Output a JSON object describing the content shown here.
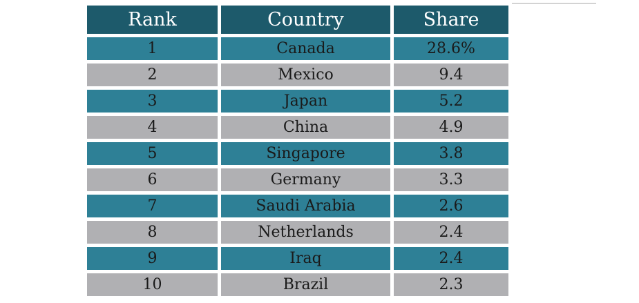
{
  "chart_data": {
    "type": "table",
    "columns": [
      "Rank",
      "Country",
      "Share"
    ],
    "rows": [
      {
        "rank": "1",
        "country": "Canada",
        "share": "28.6%"
      },
      {
        "rank": "2",
        "country": "Mexico",
        "share": "9.4"
      },
      {
        "rank": "3",
        "country": "Japan",
        "share": "5.2"
      },
      {
        "rank": "4",
        "country": "China",
        "share": "4.9"
      },
      {
        "rank": "5",
        "country": "Singapore",
        "share": "3.8"
      },
      {
        "rank": "6",
        "country": "Germany",
        "share": "3.3"
      },
      {
        "rank": "7",
        "country": "Saudi Arabia",
        "share": "2.6"
      },
      {
        "rank": "8",
        "country": "Netherlands",
        "share": "2.4"
      },
      {
        "rank": "9",
        "country": "Iraq",
        "share": "2.4"
      },
      {
        "rank": "10",
        "country": "Brazil",
        "share": "2.3"
      }
    ]
  },
  "colors": {
    "header": "#1d5a6b",
    "row_teal": "#2e8096",
    "row_gray": "#b0b0b3",
    "header_text": "#ffffff",
    "body_text": "#1a1a1a"
  }
}
